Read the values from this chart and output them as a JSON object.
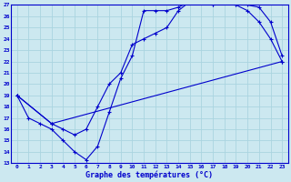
{
  "bg_color": "#cce8f0",
  "grid_color": "#aad4e0",
  "line_color": "#0000cc",
  "x_label": "Graphe des températures (°C)",
  "xlim": [
    -0.5,
    23.5
  ],
  "ylim": [
    13,
    27
  ],
  "yticks": [
    13,
    14,
    15,
    16,
    17,
    18,
    19,
    20,
    21,
    22,
    23,
    24,
    25,
    26,
    27
  ],
  "xticks": [
    0,
    1,
    2,
    3,
    4,
    5,
    6,
    7,
    8,
    9,
    10,
    11,
    12,
    13,
    14,
    15,
    16,
    17,
    18,
    19,
    20,
    21,
    22,
    23
  ],
  "curve1_x": [
    0,
    1,
    2,
    3,
    4,
    5,
    6,
    7,
    8,
    9,
    10,
    11,
    12,
    13,
    14,
    15,
    16,
    17,
    18,
    19,
    20,
    21,
    22,
    23
  ],
  "curve1_y": [
    19,
    17,
    16.5,
    16,
    15,
    14,
    13.3,
    14.5,
    17.5,
    20.5,
    22.5,
    26.5,
    26.5,
    26.5,
    26.8,
    27.3,
    27.5,
    27,
    27.3,
    27,
    26.5,
    25.5,
    24,
    22
  ],
  "curve2_x": [
    0,
    3,
    4,
    5,
    6,
    7,
    8,
    9,
    10,
    11,
    12,
    13,
    14,
    15,
    16,
    17,
    18,
    19,
    20,
    21,
    22,
    23
  ],
  "curve2_y": [
    19,
    16.5,
    16,
    15.5,
    16,
    18,
    20,
    21,
    23.5,
    24,
    24.5,
    25,
    26.5,
    27.3,
    27.5,
    27,
    27.3,
    27,
    27,
    26.8,
    25.5,
    22.5
  ],
  "curve3_x": [
    0,
    3,
    23
  ],
  "curve3_y": [
    19,
    16.5,
    22
  ],
  "figsize": [
    3.2,
    2.0
  ],
  "dpi": 100
}
